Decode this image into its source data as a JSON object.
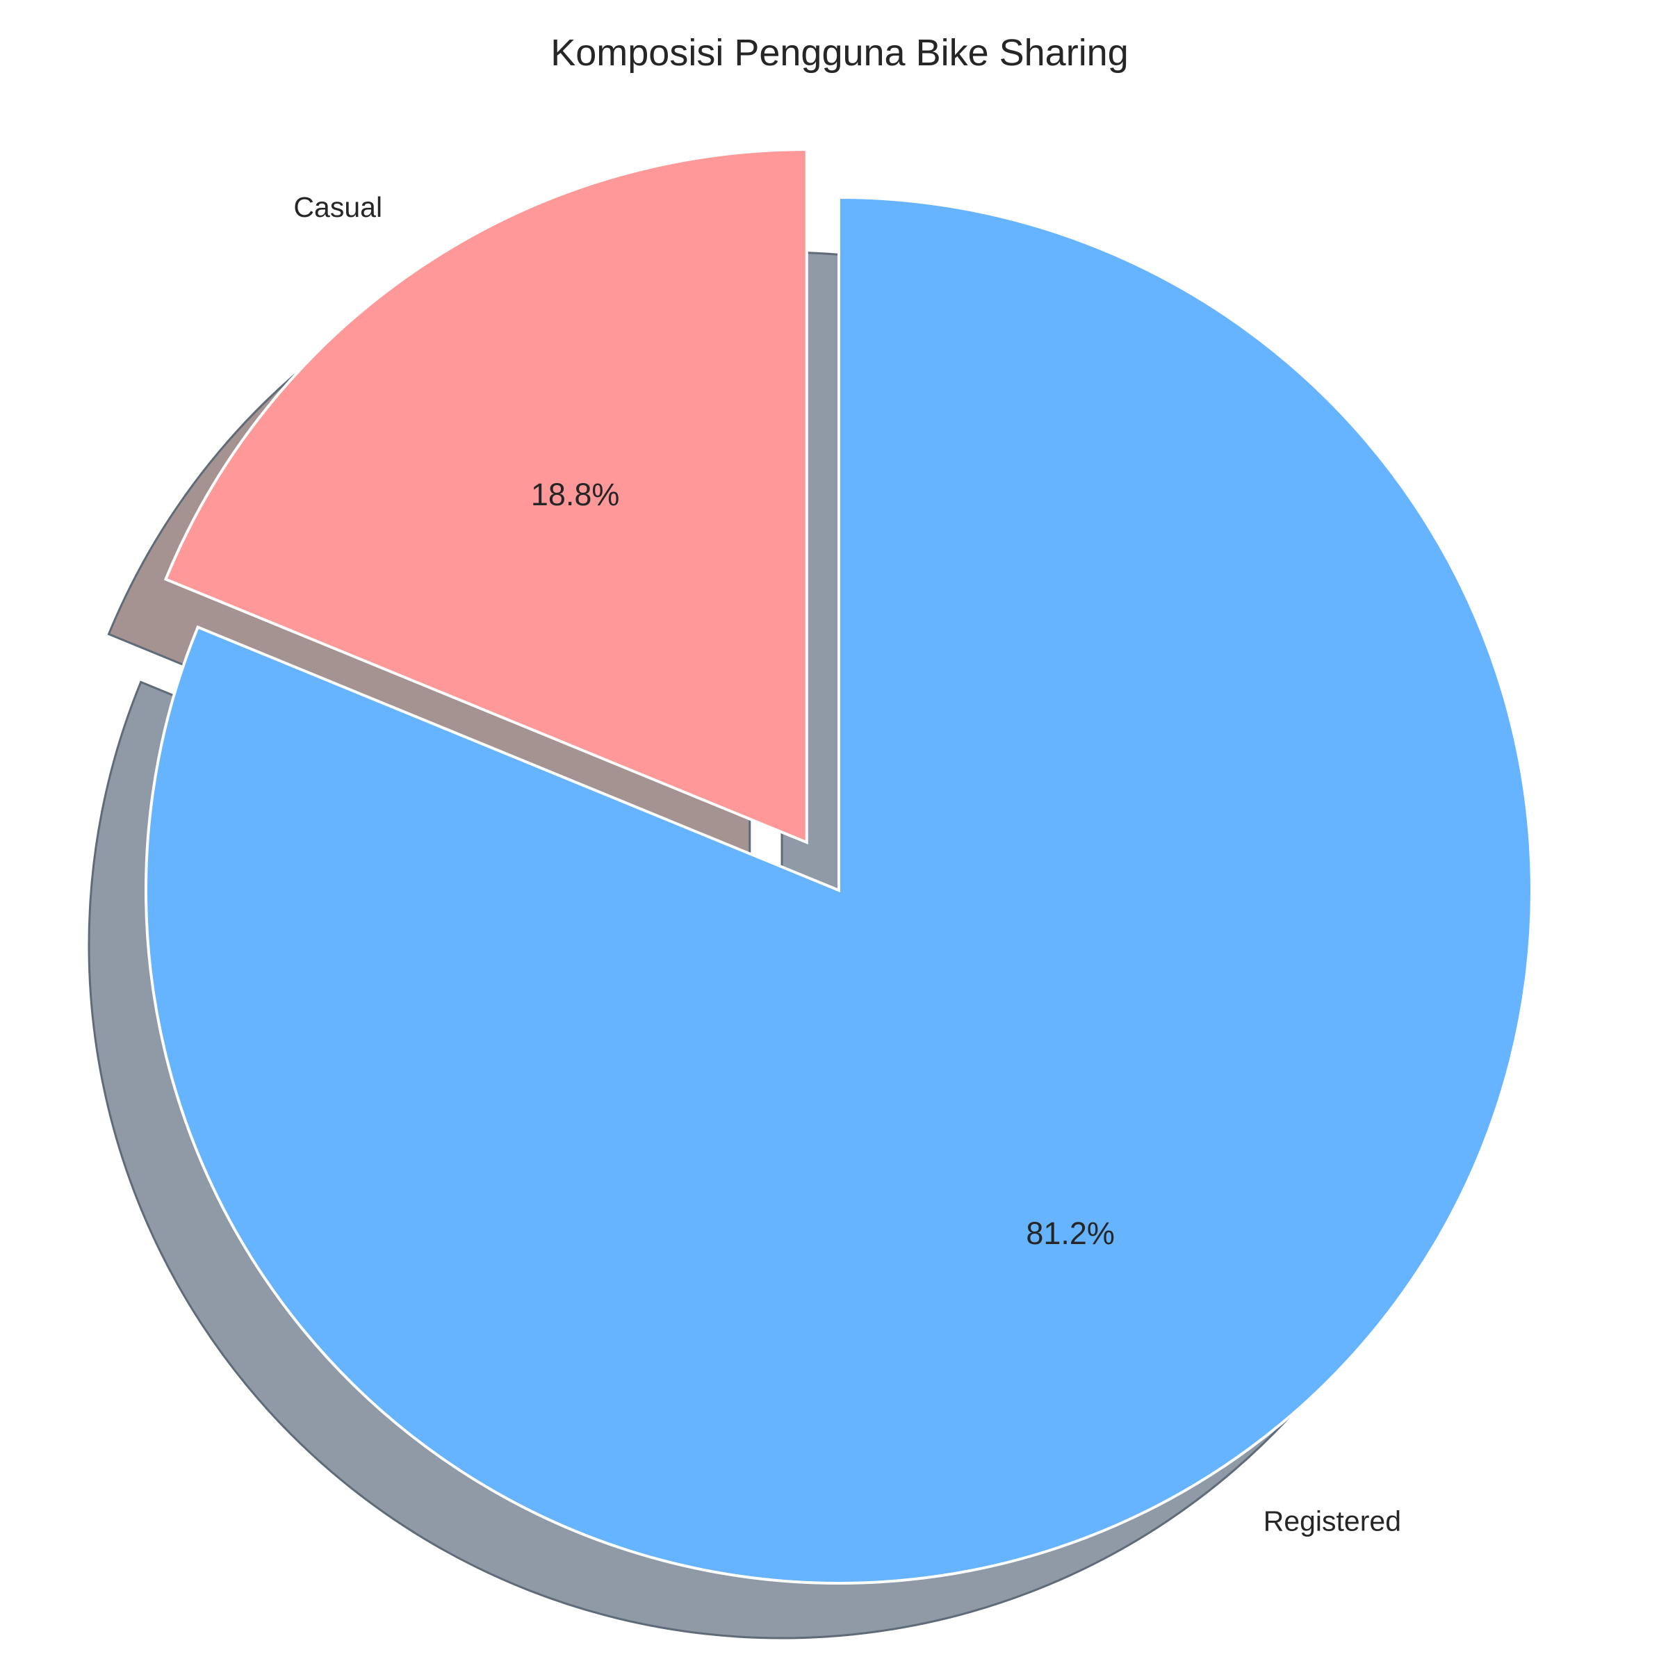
{
  "chart_data": {
    "type": "pie",
    "title": "Komposisi Pengguna Bike Sharing",
    "categories": [
      "Casual",
      "Registered"
    ],
    "values": [
      18.8,
      81.2
    ],
    "value_labels": [
      "18.8%",
      "81.2%"
    ],
    "colors": [
      "#ff9999",
      "#66b3ff"
    ],
    "explode": [
      "Casual"
    ],
    "start_angle_deg": 90,
    "shadow": true,
    "legend": "none"
  }
}
